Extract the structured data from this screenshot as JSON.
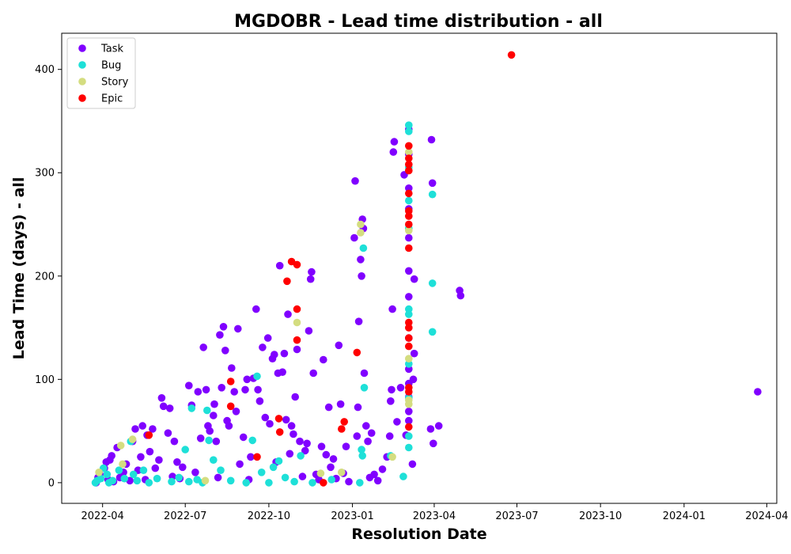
{
  "chart_data": {
    "type": "scatter",
    "title": "MGDOBR - Lead time distribution - all",
    "xlabel": "Resolution Date",
    "ylabel": "Lead Time (days) - all",
    "x_axis_type": "date",
    "xlim": [
      "2022-02-15",
      "2024-04-12"
    ],
    "ylim": [
      -20,
      435
    ],
    "x_ticks": [
      "2022-04-01",
      "2022-07-01",
      "2022-10-01",
      "2023-01-01",
      "2023-04-01",
      "2023-07-01",
      "2023-10-01",
      "2024-01-01",
      "2024-04-01"
    ],
    "x_tick_labels": [
      "2022-04",
      "2022-07",
      "2022-10",
      "2023-01",
      "2023-04",
      "2023-07",
      "2023-10",
      "2024-01",
      "2024-04"
    ],
    "y_ticks": [
      0,
      100,
      200,
      300,
      400
    ],
    "y_tick_labels": [
      "0",
      "100",
      "200",
      "300",
      "400"
    ],
    "grid": false,
    "legend_position": "top-left",
    "series": [
      {
        "name": "Task",
        "color": "#8000ff",
        "points": [
          [
            "2022-03-25",
            0
          ],
          [
            "2022-03-27",
            5
          ],
          [
            "2022-03-29",
            8
          ],
          [
            "2022-04-03",
            14
          ],
          [
            "2022-04-05",
            20
          ],
          [
            "2022-04-07",
            3
          ],
          [
            "2022-04-09",
            22
          ],
          [
            "2022-04-11",
            26
          ],
          [
            "2022-04-13",
            1
          ],
          [
            "2022-04-17",
            34
          ],
          [
            "2022-04-20",
            5
          ],
          [
            "2022-04-24",
            10
          ],
          [
            "2022-04-27",
            18
          ],
          [
            "2022-05-01",
            2
          ],
          [
            "2022-05-04",
            40
          ],
          [
            "2022-05-07",
            52
          ],
          [
            "2022-05-10",
            12
          ],
          [
            "2022-05-13",
            25
          ],
          [
            "2022-05-15",
            55
          ],
          [
            "2022-05-18",
            3
          ],
          [
            "2022-05-20",
            46
          ],
          [
            "2022-05-23",
            30
          ],
          [
            "2022-05-26",
            52
          ],
          [
            "2022-05-29",
            14
          ],
          [
            "2022-06-02",
            22
          ],
          [
            "2022-06-05",
            82
          ],
          [
            "2022-06-07",
            74
          ],
          [
            "2022-06-12",
            48
          ],
          [
            "2022-06-14",
            72
          ],
          [
            "2022-06-17",
            6
          ],
          [
            "2022-06-19",
            40
          ],
          [
            "2022-06-22",
            20
          ],
          [
            "2022-06-25",
            4
          ],
          [
            "2022-06-28",
            15
          ],
          [
            "2022-07-05",
            94
          ],
          [
            "2022-07-08",
            75
          ],
          [
            "2022-07-12",
            10
          ],
          [
            "2022-07-15",
            88
          ],
          [
            "2022-07-18",
            43
          ],
          [
            "2022-07-21",
            131
          ],
          [
            "2022-07-24",
            90
          ],
          [
            "2022-07-26",
            55
          ],
          [
            "2022-07-28",
            50
          ],
          [
            "2022-08-01",
            65
          ],
          [
            "2022-08-02",
            76
          ],
          [
            "2022-08-04",
            40
          ],
          [
            "2022-08-06",
            5
          ],
          [
            "2022-08-08",
            143
          ],
          [
            "2022-08-10",
            92
          ],
          [
            "2022-08-12",
            151
          ],
          [
            "2022-08-14",
            128
          ],
          [
            "2022-08-16",
            60
          ],
          [
            "2022-08-18",
            55
          ],
          [
            "2022-08-21",
            111
          ],
          [
            "2022-08-24",
            88
          ],
          [
            "2022-08-26",
            69
          ],
          [
            "2022-08-28",
            149
          ],
          [
            "2022-08-30",
            18
          ],
          [
            "2022-09-03",
            44
          ],
          [
            "2022-09-05",
            90
          ],
          [
            "2022-09-07",
            100
          ],
          [
            "2022-09-09",
            3
          ],
          [
            "2022-09-11",
            25
          ],
          [
            "2022-09-14",
            101
          ],
          [
            "2022-09-17",
            168
          ],
          [
            "2022-09-19",
            90
          ],
          [
            "2022-09-21",
            79
          ],
          [
            "2022-09-24",
            131
          ],
          [
            "2022-09-27",
            63
          ],
          [
            "2022-09-30",
            140
          ],
          [
            "2022-10-02",
            57
          ],
          [
            "2022-10-05",
            120
          ],
          [
            "2022-10-07",
            124
          ],
          [
            "2022-10-09",
            20
          ],
          [
            "2022-10-11",
            106
          ],
          [
            "2022-10-13",
            210
          ],
          [
            "2022-10-16",
            107
          ],
          [
            "2022-10-18",
            125
          ],
          [
            "2022-10-20",
            61
          ],
          [
            "2022-10-22",
            163
          ],
          [
            "2022-10-24",
            28
          ],
          [
            "2022-10-26",
            55
          ],
          [
            "2022-10-28",
            47
          ],
          [
            "2022-10-30",
            83
          ],
          [
            "2022-11-01",
            129
          ],
          [
            "2022-11-04",
            40
          ],
          [
            "2022-11-07",
            6
          ],
          [
            "2022-11-10",
            31
          ],
          [
            "2022-11-12",
            38
          ],
          [
            "2022-11-14",
            147
          ],
          [
            "2022-11-16",
            197
          ],
          [
            "2022-11-17",
            204
          ],
          [
            "2022-11-19",
            106
          ],
          [
            "2022-11-22",
            8
          ],
          [
            "2022-11-25",
            3
          ],
          [
            "2022-11-28",
            35
          ],
          [
            "2022-11-30",
            119
          ],
          [
            "2022-12-03",
            27
          ],
          [
            "2022-12-06",
            73
          ],
          [
            "2022-12-08",
            15
          ],
          [
            "2022-12-11",
            23
          ],
          [
            "2022-12-14",
            4
          ],
          [
            "2022-12-17",
            133
          ],
          [
            "2022-12-19",
            76
          ],
          [
            "2022-12-22",
            9
          ],
          [
            "2022-12-25",
            35
          ],
          [
            "2022-12-28",
            1
          ],
          [
            "2023-01-03",
            237
          ],
          [
            "2023-01-04",
            292
          ],
          [
            "2023-01-06",
            45
          ],
          [
            "2023-01-07",
            73
          ],
          [
            "2023-01-08",
            156
          ],
          [
            "2023-01-10",
            216
          ],
          [
            "2023-01-11",
            200
          ],
          [
            "2023-01-12",
            255
          ],
          [
            "2023-01-13",
            246
          ],
          [
            "2023-01-14",
            106
          ],
          [
            "2023-01-16",
            55
          ],
          [
            "2023-01-18",
            40
          ],
          [
            "2023-01-20",
            5
          ],
          [
            "2023-01-22",
            48
          ],
          [
            "2023-01-25",
            8
          ],
          [
            "2023-01-29",
            2
          ],
          [
            "2023-02-03",
            13
          ],
          [
            "2023-02-08",
            25
          ],
          [
            "2023-02-11",
            45
          ],
          [
            "2023-02-12",
            79
          ],
          [
            "2023-02-13",
            90
          ],
          [
            "2023-02-14",
            168
          ],
          [
            "2023-02-15",
            320
          ],
          [
            "2023-02-16",
            330
          ],
          [
            "2023-02-19",
            59
          ],
          [
            "2023-02-23",
            92
          ],
          [
            "2023-02-27",
            298
          ],
          [
            "2023-03-01",
            46
          ],
          [
            "2023-03-04",
            69
          ],
          [
            "2023-03-04",
            110
          ],
          [
            "2023-03-04",
            180
          ],
          [
            "2023-03-04",
            237
          ],
          [
            "2023-03-04",
            285
          ],
          [
            "2023-03-04",
            342
          ],
          [
            "2023-03-04",
            83
          ],
          [
            "2023-03-04",
            140
          ],
          [
            "2023-03-04",
            205
          ],
          [
            "2023-03-04",
            265
          ],
          [
            "2023-03-04",
            318
          ],
          [
            "2023-03-04",
            60
          ],
          [
            "2023-03-04",
            96
          ],
          [
            "2023-03-08",
            18
          ],
          [
            "2023-03-09",
            100
          ],
          [
            "2023-03-10",
            197
          ],
          [
            "2023-03-10",
            125
          ],
          [
            "2023-03-28",
            52
          ],
          [
            "2023-03-29",
            332
          ],
          [
            "2023-03-30",
            290
          ],
          [
            "2023-03-31",
            38
          ],
          [
            "2023-04-06",
            55
          ],
          [
            "2023-04-29",
            186
          ],
          [
            "2023-04-30",
            181
          ],
          [
            "2024-03-22",
            88
          ]
        ]
      },
      {
        "name": "Bug",
        "color": "#1ee0d8",
        "points": [
          [
            "2022-03-24",
            0
          ],
          [
            "2022-03-26",
            2
          ],
          [
            "2022-03-30",
            4
          ],
          [
            "2022-04-02",
            14
          ],
          [
            "2022-04-06",
            8
          ],
          [
            "2022-04-08",
            0
          ],
          [
            "2022-04-12",
            2
          ],
          [
            "2022-04-19",
            12
          ],
          [
            "2022-04-25",
            4
          ],
          [
            "2022-05-02",
            40
          ],
          [
            "2022-05-05",
            8
          ],
          [
            "2022-05-09",
            2
          ],
          [
            "2022-05-16",
            12
          ],
          [
            "2022-05-22",
            0
          ],
          [
            "2022-05-31",
            4
          ],
          [
            "2022-06-16",
            1
          ],
          [
            "2022-06-24",
            5
          ],
          [
            "2022-07-01",
            32
          ],
          [
            "2022-07-05",
            1
          ],
          [
            "2022-07-08",
            72
          ],
          [
            "2022-07-14",
            3
          ],
          [
            "2022-07-20",
            0
          ],
          [
            "2022-07-25",
            70
          ],
          [
            "2022-07-27",
            41
          ],
          [
            "2022-08-01",
            22
          ],
          [
            "2022-08-09",
            12
          ],
          [
            "2022-08-20",
            2
          ],
          [
            "2022-09-06",
            0
          ],
          [
            "2022-09-13",
            41
          ],
          [
            "2022-09-18",
            103
          ],
          [
            "2022-09-23",
            10
          ],
          [
            "2022-10-01",
            0
          ],
          [
            "2022-10-06",
            15
          ],
          [
            "2022-10-12",
            21
          ],
          [
            "2022-10-19",
            5
          ],
          [
            "2022-10-29",
            1
          ],
          [
            "2022-11-05",
            26
          ],
          [
            "2022-11-18",
            0
          ],
          [
            "2022-12-09",
            3
          ],
          [
            "2023-01-09",
            0
          ],
          [
            "2023-01-11",
            32
          ],
          [
            "2023-01-12",
            26
          ],
          [
            "2023-01-13",
            227
          ],
          [
            "2023-01-14",
            92
          ],
          [
            "2023-02-12",
            26
          ],
          [
            "2023-02-26",
            6
          ],
          [
            "2023-03-04",
            346
          ],
          [
            "2023-03-04",
            340
          ],
          [
            "2023-03-04",
            305
          ],
          [
            "2023-03-04",
            273
          ],
          [
            "2023-03-04",
            246
          ],
          [
            "2023-03-04",
            168
          ],
          [
            "2023-03-04",
            163
          ],
          [
            "2023-03-04",
            115
          ],
          [
            "2023-03-04",
            82
          ],
          [
            "2023-03-04",
            45
          ],
          [
            "2023-03-04",
            34
          ],
          [
            "2023-03-30",
            279
          ],
          [
            "2023-03-30",
            193
          ],
          [
            "2023-03-30",
            146
          ]
        ]
      },
      {
        "name": "Story",
        "color": "#d4dd80",
        "points": [
          [
            "2022-03-28",
            10
          ],
          [
            "2022-04-21",
            36
          ],
          [
            "2022-04-23",
            18
          ],
          [
            "2022-05-04",
            42
          ],
          [
            "2022-07-23",
            2
          ],
          [
            "2022-11-01",
            155
          ],
          [
            "2022-11-27",
            9
          ],
          [
            "2022-12-20",
            10
          ],
          [
            "2023-01-10",
            250
          ],
          [
            "2023-01-10",
            242
          ],
          [
            "2023-02-14",
            25
          ],
          [
            "2023-03-04",
            320
          ],
          [
            "2023-03-04",
            244
          ],
          [
            "2023-03-04",
            120
          ],
          [
            "2023-03-04",
            80
          ],
          [
            "2023-03-04",
            76
          ]
        ]
      },
      {
        "name": "Epic",
        "color": "#ff0000",
        "points": [
          [
            "2022-05-22",
            46
          ],
          [
            "2022-08-20",
            98
          ],
          [
            "2022-08-20",
            74
          ],
          [
            "2022-09-18",
            25
          ],
          [
            "2022-10-12",
            62
          ],
          [
            "2022-10-13",
            49
          ],
          [
            "2022-10-21",
            195
          ],
          [
            "2022-10-26",
            214
          ],
          [
            "2022-11-01",
            211
          ],
          [
            "2022-11-01",
            168
          ],
          [
            "2022-11-01",
            138
          ],
          [
            "2022-11-30",
            0
          ],
          [
            "2022-12-20",
            52
          ],
          [
            "2022-12-23",
            59
          ],
          [
            "2023-01-06",
            126
          ],
          [
            "2023-03-04",
            326
          ],
          [
            "2023-03-04",
            314
          ],
          [
            "2023-03-04",
            308
          ],
          [
            "2023-03-04",
            302
          ],
          [
            "2023-03-04",
            280
          ],
          [
            "2023-03-04",
            263
          ],
          [
            "2023-03-04",
            258
          ],
          [
            "2023-03-04",
            250
          ],
          [
            "2023-03-04",
            227
          ],
          [
            "2023-03-04",
            155
          ],
          [
            "2023-03-04",
            150
          ],
          [
            "2023-03-04",
            140
          ],
          [
            "2023-03-04",
            132
          ],
          [
            "2023-03-04",
            92
          ],
          [
            "2023-03-04",
            88
          ],
          [
            "2023-03-04",
            54
          ],
          [
            "2023-06-25",
            414
          ]
        ]
      }
    ]
  }
}
